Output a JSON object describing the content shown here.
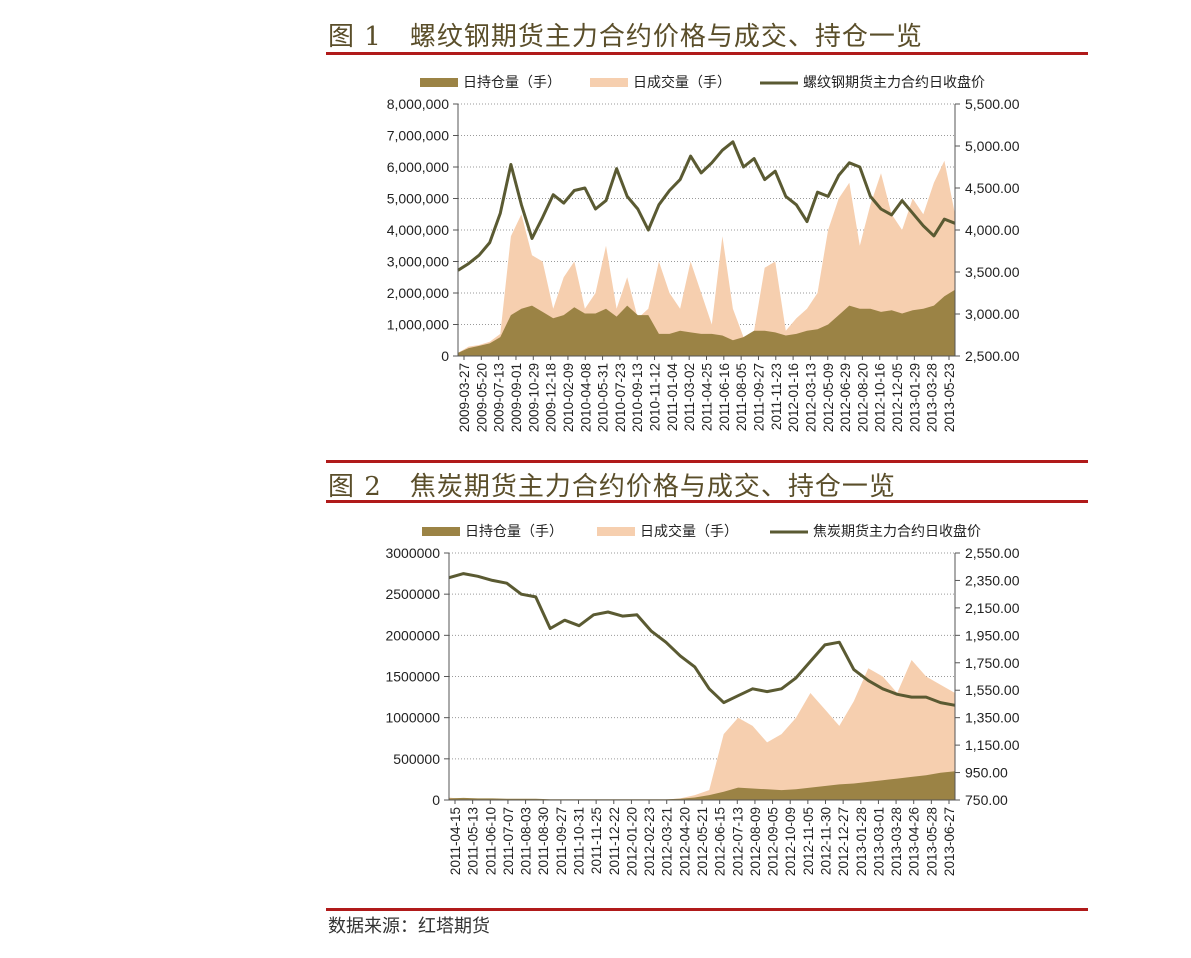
{
  "figures": [
    {
      "number": "图 1",
      "title": "螺纹钢期货主力合约价格与成交、持仓一览"
    },
    {
      "number": "图 2",
      "title": "焦炭期货主力合约价格与成交、持仓一览"
    }
  ],
  "source": "数据来源：红塔期货",
  "colors": {
    "oi": "#9b8345",
    "volume": "#f6cfaf",
    "price": "#5a5a32",
    "rule": "#b01a1a"
  },
  "chart_data": [
    {
      "type": "area",
      "legend": [
        "日持仓量（手）",
        "日成交量（手）",
        "螺纹钢期货主力合约日收盘价"
      ],
      "legend_placement": "top",
      "grid": true,
      "left_ticks": [
        "0",
        "1,000,000",
        "2,000,000",
        "3,000,000",
        "4,000,000",
        "5,000,000",
        "6,000,000",
        "7,000,000",
        "8,000,000"
      ],
      "right_ticks": [
        "2,500.00",
        "3,000.00",
        "3,500.00",
        "4,000.00",
        "4,500.00",
        "5,000.00",
        "5,500.00"
      ],
      "ylim_left": [
        0,
        8000000
      ],
      "ylim_right": [
        2500,
        5500
      ],
      "x_ticks": [
        "2009-03-27",
        "2009-05-20",
        "2009-07-13",
        "2009-09-01",
        "2009-10-29",
        "2009-12-18",
        "2010-02-09",
        "2010-04-08",
        "2010-05-31",
        "2010-07-23",
        "2010-09-13",
        "2010-11-12",
        "2011-01-04",
        "2011-03-02",
        "2011-04-25",
        "2011-06-16",
        "2011-08-05",
        "2011-09-27",
        "2011-11-23",
        "2012-01-16",
        "2012-03-13",
        "2012-05-09",
        "2012-06-29",
        "2012-08-20",
        "2012-10-16",
        "2012-12-05",
        "2013-01-29",
        "2013-03-28",
        "2013-05-23"
      ],
      "series": [
        {
          "name": "日收盘价",
          "axis": "right",
          "values": [
            3520,
            3600,
            3700,
            3850,
            4200,
            4780,
            4300,
            3900,
            4150,
            4420,
            4320,
            4470,
            4500,
            4250,
            4350,
            4730,
            4400,
            4250,
            4000,
            4300,
            4470,
            4600,
            4880,
            4680,
            4800,
            4950,
            5050,
            4750,
            4850,
            4600,
            4700,
            4400,
            4300,
            4100,
            4450,
            4400,
            4650,
            4800,
            4750,
            4400,
            4250,
            4180,
            4350,
            4200,
            4050,
            3930,
            4130,
            4080
          ]
        },
        {
          "name": "日成交量",
          "axis": "left",
          "values": [
            100000,
            300000,
            350000,
            450000,
            700000,
            3800000,
            4500000,
            3200000,
            3000000,
            1500000,
            2500000,
            3000000,
            1500000,
            2000000,
            3500000,
            1500000,
            2500000,
            1200000,
            1500000,
            3000000,
            2000000,
            1500000,
            3000000,
            2000000,
            1000000,
            3800000,
            1500000,
            600000,
            800000,
            2800000,
            3000000,
            800000,
            1200000,
            1500000,
            2000000,
            4000000,
            5000000,
            5500000,
            3500000,
            4800000,
            5800000,
            4500000,
            4000000,
            5000000,
            4500000,
            5500000,
            6200000,
            4500000
          ]
        },
        {
          "name": "日持仓量",
          "axis": "left",
          "values": [
            100000,
            250000,
            320000,
            400000,
            600000,
            1300000,
            1500000,
            1600000,
            1400000,
            1200000,
            1300000,
            1550000,
            1350000,
            1350000,
            1500000,
            1250000,
            1600000,
            1300000,
            1300000,
            700000,
            700000,
            800000,
            750000,
            700000,
            700000,
            650000,
            500000,
            600000,
            800000,
            800000,
            750000,
            650000,
            700000,
            800000,
            850000,
            1000000,
            1300000,
            1600000,
            1500000,
            1500000,
            1400000,
            1450000,
            1350000,
            1450000,
            1500000,
            1600000,
            1900000,
            2100000
          ]
        }
      ]
    },
    {
      "type": "area",
      "legend": [
        "日持仓量（手）",
        "日成交量（手）",
        "焦炭期货主力合约日收盘价"
      ],
      "legend_placement": "top",
      "grid": true,
      "left_ticks": [
        "0",
        "500000",
        "1000000",
        "1500000",
        "2000000",
        "2500000",
        "3000000"
      ],
      "right_ticks": [
        "750.00",
        "950.00",
        "1,150.00",
        "1,350.00",
        "1,550.00",
        "1,750.00",
        "1,950.00",
        "2,150.00",
        "2,350.00",
        "2,550.00"
      ],
      "ylim_left": [
        0,
        3000000
      ],
      "ylim_right": [
        750,
        2550
      ],
      "x_ticks": [
        "2011-04-15",
        "2011-05-13",
        "2011-06-10",
        "2011-07-07",
        "2011-08-03",
        "2011-08-30",
        "2011-09-27",
        "2011-10-31",
        "2011-11-25",
        "2011-12-22",
        "2012-01-20",
        "2012-02-23",
        "2012-03-21",
        "2012-04-20",
        "2012-05-21",
        "2012-06-15",
        "2012-07-13",
        "2012-08-09",
        "2012-09-05",
        "2012-10-09",
        "2012-11-05",
        "2012-11-30",
        "2012-12-27",
        "2013-01-28",
        "2013-03-01",
        "2013-03-28",
        "2013-04-26",
        "2013-05-28",
        "2013-06-27"
      ],
      "series": [
        {
          "name": "日收盘价",
          "axis": "right",
          "values": [
            2370,
            2400,
            2380,
            2350,
            2330,
            2250,
            2230,
            2000,
            2060,
            2020,
            2100,
            2120,
            2090,
            2100,
            1980,
            1900,
            1800,
            1720,
            1560,
            1460,
            1510,
            1560,
            1540,
            1560,
            1640,
            1760,
            1880,
            1900,
            1700,
            1620,
            1560,
            1520,
            1500,
            1500,
            1460,
            1440
          ]
        },
        {
          "name": "日成交量",
          "axis": "left",
          "values": [
            30000,
            10000,
            5000,
            5000,
            5000,
            5000,
            5000,
            5000,
            5000,
            5000,
            5000,
            5000,
            5000,
            5000,
            5000,
            5000,
            20000,
            60000,
            120000,
            800000,
            1000000,
            900000,
            700000,
            800000,
            1000000,
            1300000,
            1100000,
            900000,
            1200000,
            1600000,
            1500000,
            1300000,
            1700000,
            1500000,
            1400000,
            1300000
          ]
        },
        {
          "name": "日持仓量",
          "axis": "left",
          "values": [
            20000,
            25000,
            20000,
            20000,
            15000,
            15000,
            15000,
            10000,
            10000,
            10000,
            10000,
            10000,
            10000,
            10000,
            10000,
            10000,
            15000,
            30000,
            60000,
            100000,
            150000,
            140000,
            130000,
            120000,
            130000,
            150000,
            170000,
            190000,
            200000,
            220000,
            240000,
            260000,
            280000,
            300000,
            330000,
            350000
          ]
        }
      ]
    }
  ]
}
